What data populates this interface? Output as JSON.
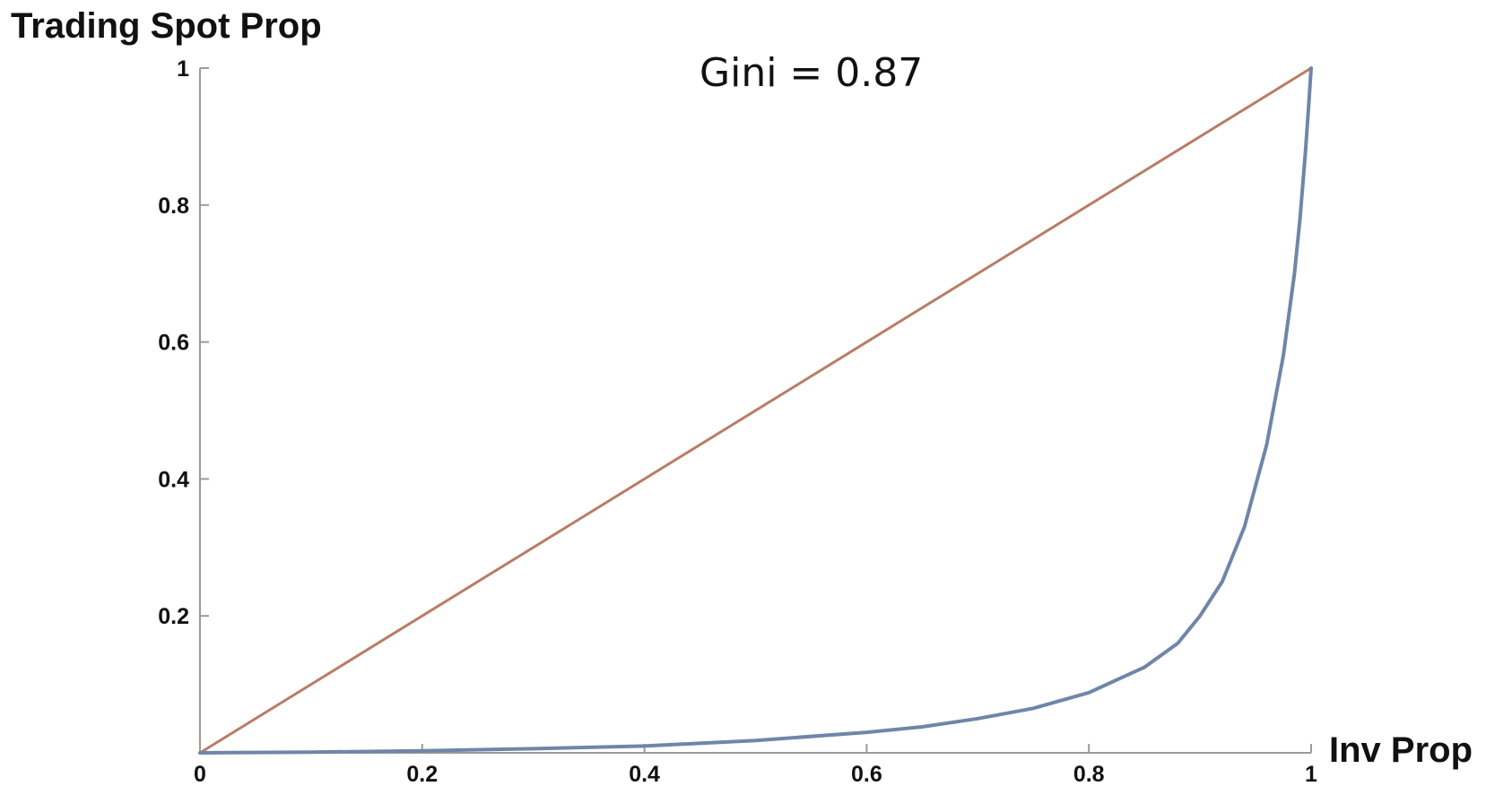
{
  "chart_data": {
    "type": "line",
    "title": "",
    "xlabel": "Inv Prop",
    "ylabel": "Trading Spot Prop",
    "annotation": "Gini = 0.87",
    "xlim": [
      0,
      1
    ],
    "ylim": [
      0,
      1
    ],
    "x_ticks": [
      0,
      0.2,
      0.4,
      0.6,
      0.8,
      1
    ],
    "x_tick_labels": [
      "0",
      "0.2",
      "0.4",
      "0.6",
      "0.8",
      "1"
    ],
    "y_ticks": [
      0.2,
      0.4,
      0.6,
      0.8,
      1
    ],
    "y_tick_labels": [
      "0.2",
      "0.4",
      "0.6",
      "0.8",
      "1"
    ],
    "grid": false,
    "legend": "none",
    "series": [
      {
        "color": "#b87d66",
        "x": [
          0,
          1
        ],
        "y": [
          0,
          1
        ]
      },
      {
        "color": "#6f86a8",
        "x": [
          0,
          0.1,
          0.2,
          0.3,
          0.4,
          0.5,
          0.6,
          0.65,
          0.7,
          0.75,
          0.8,
          0.85,
          0.88,
          0.9,
          0.92,
          0.94,
          0.96,
          0.975,
          0.985,
          0.99,
          0.995,
          0.998,
          1
        ],
        "y": [
          0,
          0.001,
          0.003,
          0.006,
          0.01,
          0.018,
          0.03,
          0.038,
          0.05,
          0.065,
          0.088,
          0.125,
          0.16,
          0.2,
          0.25,
          0.33,
          0.45,
          0.58,
          0.7,
          0.78,
          0.88,
          0.95,
          1
        ]
      }
    ]
  }
}
